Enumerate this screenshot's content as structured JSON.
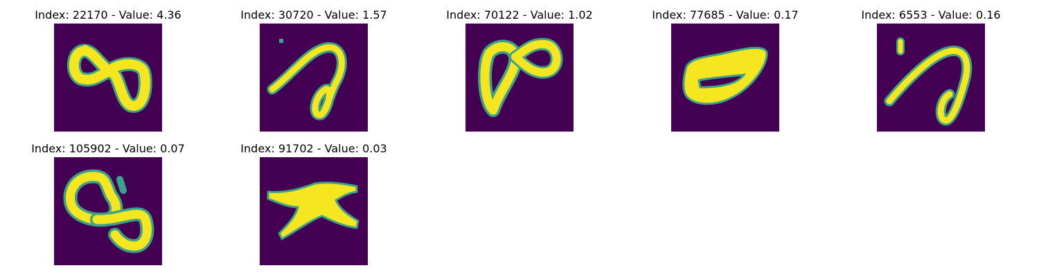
{
  "panels": [
    {
      "index": "22170",
      "value": "4.36",
      "title": "Index: 22170 - Value: 4.36"
    },
    {
      "index": "30720",
      "value": "1.57",
      "title": "Index: 30720 - Value: 1.57"
    },
    {
      "index": "70122",
      "value": "1.02",
      "title": "Index: 70122 - Value: 1.02"
    },
    {
      "index": "77685",
      "value": "0.17",
      "title": "Index: 77685 - Value: 0.17"
    },
    {
      "index": "6553",
      "value": "0.16",
      "title": "Index: 6553 - Value: 0.16"
    },
    {
      "index": "105902",
      "value": "0.07",
      "title": "Index: 105902 - Value: 0.07"
    },
    {
      "index": "91702",
      "value": "0.03",
      "title": "Index: 91702 - Value: 0.03"
    }
  ],
  "colors": {
    "background": "#440154",
    "foreground": "#f5e61f",
    "edge": "#3ba38a"
  }
}
